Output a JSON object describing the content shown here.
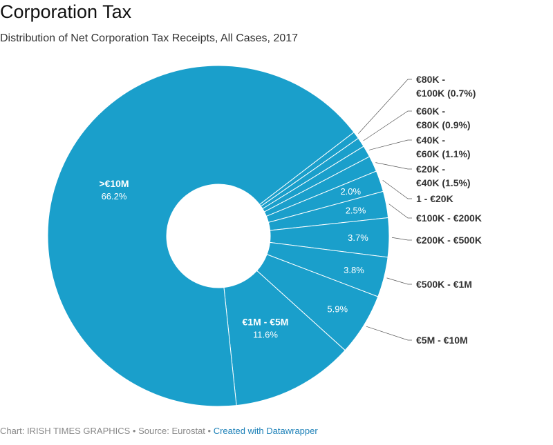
{
  "title": "Corporation Tax",
  "subtitle": "Distribution of Net Corporation Tax Receipts, All Cases, 2017",
  "footer": {
    "chart_credit": "Chart: IRISH TIMES GRAPHICS",
    "separator": " • ",
    "source": "Source: Eurostat",
    "link": "Created with Datawrapper"
  },
  "colors": {
    "slice": "#1a9fcb",
    "border": "#ffffff",
    "leader": "#555555"
  },
  "chart_data": {
    "type": "pie",
    "variant": "donut",
    "title": "Corporation Tax",
    "subtitle": "Distribution of Net Corporation Tax Receipts, All Cases, 2017",
    "unit": "%",
    "slices": [
      {
        "label": "€80K - €100K",
        "value": 0.7,
        "display": [
          "€80K -",
          "€100K (0.7%)"
        ]
      },
      {
        "label": "€60K - €80K",
        "value": 0.9,
        "display": [
          "€60K -",
          "€80K (0.9%)"
        ]
      },
      {
        "label": "€40K - €60K",
        "value": 1.1,
        "display": [
          "€40K -",
          "€60K (1.1%)"
        ]
      },
      {
        "label": "€20K - €40K",
        "value": 1.5,
        "display": [
          "€20K -",
          "€40K (1.5%)"
        ]
      },
      {
        "label": "1 - €20K",
        "value": 2.0,
        "display": [
          "1 - €20K"
        ],
        "inner": "2.0%"
      },
      {
        "label": "€100K - €200K",
        "value": 2.5,
        "display": [
          "€100K - €200K"
        ],
        "inner": "2.5%"
      },
      {
        "label": "€200K - €500K",
        "value": 3.7,
        "display": [
          "€200K - €500K"
        ],
        "inner": "3.7%"
      },
      {
        "label": "€500K - €1M",
        "value": 3.8,
        "display": [
          "€500K - €1M"
        ],
        "inner": "3.8%"
      },
      {
        "label": "€5M - €10M",
        "value": 5.9,
        "display": [
          "€5M - €10M"
        ],
        "inner": "5.9%"
      },
      {
        "label": "€1M - €5M",
        "value": 11.6,
        "inner_name": "€1M - €5M",
        "inner": "11.6%"
      },
      {
        "label": ">€10M",
        "value": 66.2,
        "inner_name": ">€10M",
        "inner": "66.2%"
      }
    ]
  }
}
